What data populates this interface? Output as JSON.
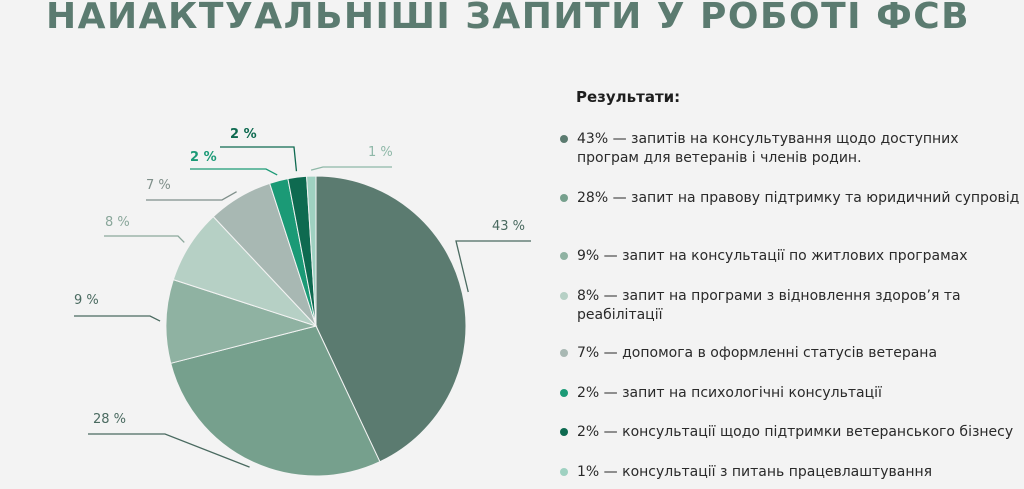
{
  "page": {
    "title": "НАЙАКТУАЛЬНІШІ ЗАПИТИ У РОБОТІ ФСВ"
  },
  "results": {
    "heading": "Результати:",
    "items": [
      {
        "text": "43% — запитів на консультування щодо доступних програм для ветеранів і членів родин."
      },
      {
        "text": "28% — запит на правову підтримку та юридичний супровід"
      },
      {
        "text": "9% — запит на консультації по житлових програмах"
      },
      {
        "text": "8% — запит на програми з відновлення здоров’я та реабілітації"
      },
      {
        "text": "7% — допомога в оформленні статусів ветерана"
      },
      {
        "text": "2% — запит на психологічні консультації"
      },
      {
        "text": "2% — консультації щодо підтримки ветеранського бізнесу"
      },
      {
        "text": "1% — консультації з питань працевлаштування"
      }
    ]
  },
  "chart_data": {
    "type": "pie",
    "categories": [
      "43% — запитів на консультування щодо доступних програм для ветеранів і членів родин.",
      "28% — запит на правову підтримку та юридичний супровід",
      "9% — запит на консультації по житлових програмах",
      "8% — запит на програми з відновлення здоров’я та реабілітації",
      "7% — допомога в оформленні статусів ветерана",
      "2% — запит на психологічні консультації",
      "2% — консультації щодо підтримки ветеранського бізнесу",
      "1% — консультації з питань працевлаштування"
    ],
    "values": [
      43,
      28,
      9,
      8,
      7,
      2,
      2,
      1
    ],
    "data_labels": [
      "43 %",
      "28 %",
      "9 %",
      "8 %",
      "7 %",
      "2 %",
      "2 %",
      "1 %"
    ],
    "colors": [
      "#5b7b70",
      "#76a08d",
      "#8fb2a2",
      "#b6d0c5",
      "#a8b8b3",
      "#1b9a76",
      "#0e6a50",
      "#9fd1c1"
    ],
    "label_colors": [
      "#4a6a60",
      "#4a6a60",
      "#4a6a60",
      "#8aa79b",
      "#7f8f8a",
      "#1b9a76",
      "#0e6a50",
      "#8fb8a8"
    ],
    "start": "12 o'clock",
    "direction": "clockwise",
    "legend": "right"
  }
}
